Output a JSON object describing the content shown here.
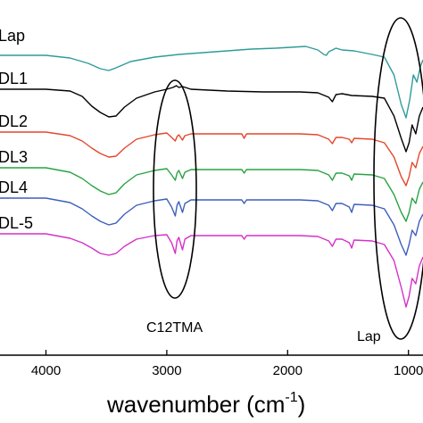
{
  "chart_data": {
    "type": "line",
    "title": "",
    "xlabel": "wavenumber (cm",
    "xlabel_sup": "-1",
    "xlabel_close": ")",
    "ylabel": "",
    "xlim": [
      4380,
      880
    ],
    "x_ticks": [
      4000,
      3000,
      2000,
      1000
    ],
    "x_tick_labels": [
      "4000",
      "3000",
      "2000",
      "1000"
    ],
    "grid": false,
    "legend": "none",
    "series": [
      {
        "name": "Lap",
        "color": "#2e9c9a",
        "offset": 62,
        "points": [
          [
            4380,
            0
          ],
          [
            4000,
            0
          ],
          [
            3800,
            3
          ],
          [
            3650,
            9
          ],
          [
            3550,
            15
          ],
          [
            3480,
            17
          ],
          [
            3420,
            14
          ],
          [
            3300,
            7
          ],
          [
            3100,
            2
          ],
          [
            2900,
            -1
          ],
          [
            2700,
            -3
          ],
          [
            2500,
            -5
          ],
          [
            2300,
            -7
          ],
          [
            2100,
            -8
          ],
          [
            1850,
            -10
          ],
          [
            1750,
            -6
          ],
          [
            1700,
            -1
          ],
          [
            1680,
            0
          ],
          [
            1660,
            -4
          ],
          [
            1600,
            -8
          ],
          [
            1550,
            -6
          ],
          [
            1450,
            -5
          ],
          [
            1300,
            -1
          ],
          [
            1200,
            2
          ],
          [
            1120,
            22
          ],
          [
            1060,
            55
          ],
          [
            1020,
            70
          ],
          [
            990,
            50
          ],
          [
            960,
            22
          ],
          [
            930,
            30
          ],
          [
            900,
            12
          ],
          [
            880,
            5
          ]
        ]
      },
      {
        "name": "DL1",
        "color": "#000000",
        "offset": 100,
        "points": [
          [
            4380,
            0
          ],
          [
            4000,
            0
          ],
          [
            3800,
            2
          ],
          [
            3700,
            8
          ],
          [
            3620,
            19
          ],
          [
            3550,
            26
          ],
          [
            3480,
            31
          ],
          [
            3420,
            30
          ],
          [
            3350,
            20
          ],
          [
            3250,
            10
          ],
          [
            3100,
            3
          ],
          [
            3000,
            0
          ],
          [
            2950,
            -2
          ],
          [
            2920,
            -4
          ],
          [
            2900,
            -2
          ],
          [
            2870,
            -3
          ],
          [
            2800,
            0
          ],
          [
            2500,
            2
          ],
          [
            2200,
            3
          ],
          [
            1900,
            3
          ],
          [
            1750,
            4
          ],
          [
            1660,
            9
          ],
          [
            1630,
            14
          ],
          [
            1600,
            6
          ],
          [
            1550,
            5
          ],
          [
            1470,
            7
          ],
          [
            1300,
            8
          ],
          [
            1200,
            10
          ],
          [
            1120,
            30
          ],
          [
            1060,
            55
          ],
          [
            1020,
            70
          ],
          [
            995,
            60
          ],
          [
            970,
            40
          ],
          [
            940,
            50
          ],
          [
            910,
            30
          ],
          [
            880,
            20
          ]
        ]
      },
      {
        "name": "DL2",
        "color": "#e3472c",
        "offset": 148,
        "points": [
          [
            4380,
            0
          ],
          [
            4000,
            0
          ],
          [
            3800,
            4
          ],
          [
            3700,
            10
          ],
          [
            3620,
            18
          ],
          [
            3550,
            24
          ],
          [
            3480,
            28
          ],
          [
            3420,
            27
          ],
          [
            3350,
            18
          ],
          [
            3250,
            8
          ],
          [
            3100,
            3
          ],
          [
            3000,
            1
          ],
          [
            2960,
            6
          ],
          [
            2930,
            10
          ],
          [
            2915,
            5
          ],
          [
            2900,
            3
          ],
          [
            2870,
            9
          ],
          [
            2850,
            4
          ],
          [
            2800,
            2
          ],
          [
            2500,
            2
          ],
          [
            2380,
            2
          ],
          [
            2360,
            7
          ],
          [
            2340,
            2
          ],
          [
            2200,
            2
          ],
          [
            1900,
            2
          ],
          [
            1750,
            3
          ],
          [
            1660,
            8
          ],
          [
            1630,
            13
          ],
          [
            1600,
            6
          ],
          [
            1550,
            6
          ],
          [
            1490,
            8
          ],
          [
            1470,
            12
          ],
          [
            1450,
            7
          ],
          [
            1300,
            8
          ],
          [
            1200,
            12
          ],
          [
            1120,
            28
          ],
          [
            1060,
            50
          ],
          [
            1020,
            60
          ],
          [
            995,
            50
          ],
          [
            970,
            34
          ],
          [
            940,
            40
          ],
          [
            910,
            24
          ],
          [
            880,
            16
          ]
        ]
      },
      {
        "name": "DL3",
        "color": "#27a343",
        "offset": 188,
        "points": [
          [
            4380,
            0
          ],
          [
            4000,
            0
          ],
          [
            3800,
            5
          ],
          [
            3700,
            12
          ],
          [
            3620,
            20
          ],
          [
            3550,
            26
          ],
          [
            3480,
            30
          ],
          [
            3420,
            28
          ],
          [
            3350,
            18
          ],
          [
            3250,
            8
          ],
          [
            3100,
            3
          ],
          [
            3000,
            1
          ],
          [
            2960,
            8
          ],
          [
            2930,
            14
          ],
          [
            2915,
            6
          ],
          [
            2900,
            3
          ],
          [
            2870,
            12
          ],
          [
            2850,
            5
          ],
          [
            2800,
            2
          ],
          [
            2500,
            2
          ],
          [
            2380,
            2
          ],
          [
            2360,
            6
          ],
          [
            2340,
            2
          ],
          [
            2200,
            2
          ],
          [
            1900,
            2
          ],
          [
            1750,
            3
          ],
          [
            1660,
            8
          ],
          [
            1630,
            14
          ],
          [
            1600,
            6
          ],
          [
            1550,
            6
          ],
          [
            1490,
            9
          ],
          [
            1470,
            14
          ],
          [
            1450,
            7
          ],
          [
            1300,
            8
          ],
          [
            1200,
            12
          ],
          [
            1120,
            30
          ],
          [
            1060,
            50
          ],
          [
            1020,
            60
          ],
          [
            995,
            50
          ],
          [
            970,
            34
          ],
          [
            940,
            40
          ],
          [
            910,
            24
          ],
          [
            880,
            16
          ]
        ]
      },
      {
        "name": "DL4",
        "color": "#3c5fbb",
        "offset": 222,
        "points": [
          [
            4380,
            0
          ],
          [
            4000,
            0
          ],
          [
            3800,
            5
          ],
          [
            3700,
            12
          ],
          [
            3620,
            20
          ],
          [
            3550,
            26
          ],
          [
            3480,
            30
          ],
          [
            3420,
            28
          ],
          [
            3350,
            18
          ],
          [
            3250,
            8
          ],
          [
            3100,
            3
          ],
          [
            3000,
            1
          ],
          [
            2960,
            10
          ],
          [
            2930,
            20
          ],
          [
            2915,
            8
          ],
          [
            2900,
            4
          ],
          [
            2870,
            16
          ],
          [
            2850,
            6
          ],
          [
            2800,
            2
          ],
          [
            2500,
            2
          ],
          [
            2380,
            2
          ],
          [
            2360,
            6
          ],
          [
            2340,
            2
          ],
          [
            2200,
            2
          ],
          [
            1900,
            2
          ],
          [
            1750,
            3
          ],
          [
            1660,
            8
          ],
          [
            1630,
            14
          ],
          [
            1600,
            6
          ],
          [
            1550,
            6
          ],
          [
            1490,
            10
          ],
          [
            1470,
            16
          ],
          [
            1450,
            7
          ],
          [
            1300,
            8
          ],
          [
            1200,
            12
          ],
          [
            1120,
            30
          ],
          [
            1060,
            52
          ],
          [
            1020,
            64
          ],
          [
            995,
            52
          ],
          [
            970,
            36
          ],
          [
            940,
            42
          ],
          [
            910,
            26
          ],
          [
            880,
            18
          ]
        ]
      },
      {
        "name": "DL-5",
        "color": "#d431c8",
        "offset": 262,
        "points": [
          [
            4380,
            0
          ],
          [
            4000,
            0
          ],
          [
            3800,
            5
          ],
          [
            3700,
            10
          ],
          [
            3620,
            16
          ],
          [
            3550,
            22
          ],
          [
            3480,
            24
          ],
          [
            3420,
            22
          ],
          [
            3350,
            14
          ],
          [
            3250,
            6
          ],
          [
            3100,
            2
          ],
          [
            3000,
            1
          ],
          [
            2960,
            10
          ],
          [
            2930,
            22
          ],
          [
            2915,
            8
          ],
          [
            2900,
            4
          ],
          [
            2870,
            18
          ],
          [
            2850,
            6
          ],
          [
            2800,
            2
          ],
          [
            2500,
            2
          ],
          [
            2380,
            2
          ],
          [
            2360,
            6
          ],
          [
            2340,
            2
          ],
          [
            2200,
            2
          ],
          [
            1900,
            2
          ],
          [
            1750,
            3
          ],
          [
            1660,
            8
          ],
          [
            1630,
            14
          ],
          [
            1600,
            6
          ],
          [
            1550,
            6
          ],
          [
            1490,
            10
          ],
          [
            1470,
            16
          ],
          [
            1450,
            7
          ],
          [
            1300,
            8
          ],
          [
            1200,
            12
          ],
          [
            1120,
            30
          ],
          [
            1060,
            60
          ],
          [
            1020,
            82
          ],
          [
            995,
            70
          ],
          [
            970,
            50
          ],
          [
            940,
            56
          ],
          [
            910,
            36
          ],
          [
            880,
            26
          ]
        ]
      }
    ],
    "annotations": [
      {
        "text": "C12TMA",
        "x": 2860
      },
      {
        "text": "Lap",
        "x": 1000
      }
    ]
  }
}
